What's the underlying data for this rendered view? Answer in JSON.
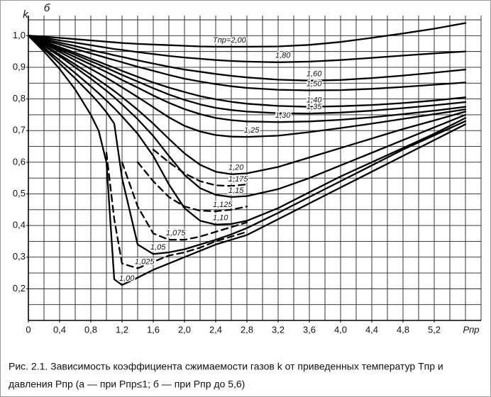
{
  "chart_data": {
    "type": "line",
    "y_label": "k",
    "panel_label": "б",
    "x_label": "Pпр",
    "caption": [
      "Рис. 2.1. Зависимость коэффициента сжимаемости газов k от приведенных температур Tпр и",
      "давления Pпр (а — при Pпр≤1; б — при Pпр до 5,6)"
    ],
    "xlim": [
      0,
      5.8
    ],
    "ylim": [
      0.1,
      1.05
    ],
    "xticks": [
      0,
      {
        "value": 0.4,
        "label": "0,4"
      },
      {
        "value": 0.8,
        "label": "0,8"
      },
      {
        "value": 1.2,
        "label": "1,2"
      },
      {
        "value": 1.6,
        "label": "1,6"
      },
      {
        "value": 2.0,
        "label": "2,0"
      },
      {
        "value": 2.4,
        "label": "2,4"
      },
      {
        "value": 2.8,
        "label": "2,8"
      },
      {
        "value": 3.2,
        "label": "3,2"
      },
      {
        "value": 3.6,
        "label": "3,6"
      },
      {
        "value": 4.0,
        "label": "4,0"
      },
      {
        "value": 4.4,
        "label": "4,4"
      },
      {
        "value": 4.8,
        "label": "4,8"
      },
      {
        "value": 5.2,
        "label": "5,2"
      }
    ],
    "x_label_at": 5.6,
    "yticks": [
      {
        "value": 0.2,
        "label": "0,2"
      },
      {
        "value": 0.3,
        "label": "0,3"
      },
      {
        "value": 0.4,
        "label": "0,4"
      },
      {
        "value": 0.5,
        "label": "0,5"
      },
      {
        "value": 0.6,
        "label": "0,6"
      },
      {
        "value": 0.7,
        "label": "0,7"
      },
      {
        "value": 0.8,
        "label": "0,8"
      },
      {
        "value": 0.9,
        "label": "0,9"
      },
      {
        "value": 1.0,
        "label": "1,0"
      }
    ],
    "xgrid": [
      0,
      0.2,
      0.4,
      0.6,
      0.8,
      1.0,
      1.2,
      1.4,
      1.6,
      1.8,
      2.0,
      2.2,
      2.4,
      2.6,
      2.8,
      3.0,
      3.2,
      3.4,
      3.6,
      3.8,
      4.0,
      4.2,
      4.4,
      4.6,
      4.8,
      5.0,
      5.2,
      5.4,
      5.6,
      5.8
    ],
    "ygrid": [
      0.1,
      0.15,
      0.2,
      0.25,
      0.3,
      0.35,
      0.4,
      0.45,
      0.5,
      0.55,
      0.6,
      0.65,
      0.7,
      0.75,
      0.8,
      0.85,
      0.9,
      0.95,
      1.0,
      1.05
    ],
    "grid": true,
    "x": [
      0,
      0.2,
      0.4,
      0.6,
      0.8,
      0.9,
      1.0,
      1.1,
      1.2,
      1.4,
      1.6,
      1.8,
      2.0,
      2.2,
      2.4,
      2.6,
      2.8,
      3.2,
      3.6,
      4.0,
      4.4,
      4.8,
      5.2,
      5.6
    ],
    "series": [
      {
        "name": "Tпр=2,00",
        "color": "#000000",
        "dashed": false,
        "values": [
          1,
          0.997,
          0.993,
          0.989,
          0.985,
          0.983,
          0.981,
          0.979,
          0.977,
          0.974,
          0.972,
          0.97,
          0.968,
          0.966,
          0.965,
          0.965,
          0.965,
          0.966,
          0.971,
          0.98,
          0.993,
          1.007,
          1.022,
          1.04
        ]
      },
      {
        "name": "1,80",
        "color": "#000000",
        "dashed": false,
        "values": [
          1,
          0.993,
          0.985,
          0.978,
          0.97,
          0.966,
          0.962,
          0.958,
          0.955,
          0.948,
          0.942,
          0.936,
          0.931,
          0.927,
          0.923,
          0.92,
          0.918,
          0.916,
          0.918,
          0.923,
          0.93,
          0.937,
          0.944,
          0.95
        ]
      },
      {
        "name": "1,60",
        "color": "#000000",
        "dashed": false,
        "values": [
          1,
          0.989,
          0.978,
          0.967,
          0.955,
          0.949,
          0.944,
          0.938,
          0.933,
          0.922,
          0.912,
          0.902,
          0.893,
          0.886,
          0.879,
          0.873,
          0.868,
          0.861,
          0.858,
          0.86,
          0.866,
          0.874,
          0.883,
          0.893
        ]
      },
      {
        "name": "1,50",
        "color": "#000000",
        "dashed": false,
        "values": [
          1,
          0.986,
          0.972,
          0.958,
          0.944,
          0.937,
          0.93,
          0.923,
          0.916,
          0.902,
          0.889,
          0.876,
          0.864,
          0.855,
          0.847,
          0.84,
          0.835,
          0.829,
          0.827,
          0.828,
          0.832,
          0.838,
          0.845,
          0.852
        ]
      },
      {
        "name": "1,40",
        "color": "#000000",
        "dashed": false,
        "values": [
          1,
          0.982,
          0.964,
          0.946,
          0.927,
          0.918,
          0.908,
          0.899,
          0.889,
          0.87,
          0.852,
          0.836,
          0.822,
          0.809,
          0.799,
          0.791,
          0.785,
          0.778,
          0.775,
          0.777,
          0.781,
          0.787,
          0.795,
          0.805
        ]
      },
      {
        "name": "1,35",
        "color": "#000000",
        "dashed": false,
        "values": [
          1,
          0.98,
          0.96,
          0.94,
          0.919,
          0.909,
          0.898,
          0.887,
          0.876,
          0.855,
          0.834,
          0.814,
          0.797,
          0.783,
          0.772,
          0.765,
          0.76,
          0.755,
          0.754,
          0.757,
          0.763,
          0.771,
          0.78,
          0.79
        ]
      },
      {
        "name": "1,30",
        "color": "#000000",
        "dashed": false,
        "values": [
          1,
          0.978,
          0.955,
          0.932,
          0.909,
          0.897,
          0.885,
          0.873,
          0.86,
          0.836,
          0.811,
          0.788,
          0.768,
          0.752,
          0.74,
          0.733,
          0.729,
          0.727,
          0.729,
          0.734,
          0.742,
          0.752,
          0.763,
          0.775
        ]
      },
      {
        "name": "1,25",
        "color": "#000000",
        "dashed": false,
        "values": [
          1,
          0.975,
          0.949,
          0.922,
          0.895,
          0.881,
          0.867,
          0.852,
          0.837,
          0.806,
          0.774,
          0.742,
          0.715,
          0.697,
          0.686,
          0.681,
          0.68,
          0.684,
          0.695,
          0.708,
          0.722,
          0.737,
          0.752,
          0.767
        ]
      },
      {
        "name": "1,20",
        "color": "#000000",
        "dashed": false,
        "values": [
          1,
          0.971,
          0.94,
          0.909,
          0.877,
          0.86,
          0.843,
          0.825,
          0.806,
          0.766,
          0.722,
          0.674,
          0.628,
          0.592,
          0.57,
          0.562,
          0.565,
          0.585,
          0.615,
          0.645,
          0.675,
          0.705,
          0.732,
          0.76
        ]
      },
      {
        "name": "1,175",
        "color": "#000000",
        "dashed": true,
        "values": [
          null,
          null,
          null,
          null,
          null,
          null,
          null,
          null,
          null,
          null,
          0.64,
          0.6,
          0.565,
          0.54,
          0.527,
          0.525,
          0.53,
          null,
          null,
          null,
          null,
          null,
          null,
          null
        ]
      },
      {
        "name": "1,15",
        "color": "#000000",
        "dashed": false,
        "values": [
          1,
          0.968,
          0.935,
          0.9,
          0.864,
          0.845,
          0.826,
          0.805,
          0.783,
          0.736,
          0.683,
          0.62,
          0.56,
          0.518,
          0.497,
          0.49,
          0.493,
          0.515,
          0.55,
          0.59,
          0.63,
          0.67,
          0.71,
          0.75
        ]
      },
      {
        "name": "1,125",
        "color": "#000000",
        "dashed": true,
        "values": [
          null,
          null,
          null,
          null,
          null,
          null,
          null,
          null,
          null,
          0.6,
          0.54,
          0.49,
          0.46,
          0.447,
          0.445,
          0.45,
          0.46,
          null,
          null,
          null,
          null,
          null,
          null,
          null
        ]
      },
      {
        "name": "1,10",
        "color": "#000000",
        "dashed": false,
        "values": [
          1,
          0.962,
          0.922,
          0.882,
          0.84,
          0.818,
          0.795,
          0.771,
          0.745,
          0.69,
          0.62,
          0.53,
          0.455,
          0.415,
          0.403,
          0.405,
          0.415,
          0.455,
          0.505,
          0.555,
          0.6,
          0.645,
          0.69,
          0.74
        ]
      },
      {
        "name": "1,075",
        "color": "#000000",
        "dashed": true,
        "values": [
          null,
          null,
          null,
          null,
          null,
          null,
          null,
          null,
          0.6,
          0.46,
          0.375,
          0.355,
          0.355,
          0.365,
          0.38,
          0.395,
          0.41,
          null,
          null,
          null,
          null,
          null,
          null,
          null
        ]
      },
      {
        "name": "1,05",
        "color": "#000000",
        "dashed": false,
        "values": [
          1,
          0.958,
          0.912,
          0.865,
          0.815,
          0.788,
          0.758,
          0.722,
          0.55,
          0.34,
          0.31,
          0.315,
          0.325,
          0.34,
          0.355,
          0.372,
          0.392,
          0.44,
          0.49,
          0.54,
          0.59,
          0.64,
          0.685,
          0.73
        ]
      },
      {
        "name": "1,025",
        "color": "#000000",
        "dashed": true,
        "values": [
          null,
          null,
          null,
          null,
          null,
          null,
          0.63,
          0.42,
          0.28,
          0.265,
          0.285,
          0.305,
          0.315,
          0.33,
          0.35,
          0.365,
          0.38,
          null,
          null,
          null,
          null,
          null,
          null,
          null
        ]
      },
      {
        "name": "1,00",
        "color": "#000000",
        "dashed": false,
        "values": [
          1,
          0.95,
          0.895,
          0.83,
          0.75,
          0.7,
          0.6,
          0.23,
          0.212,
          0.235,
          0.26,
          0.28,
          0.3,
          0.32,
          0.34,
          0.355,
          0.37,
          0.42,
          0.47,
          0.52,
          0.57,
          0.62,
          0.67,
          0.72
        ]
      }
    ]
  }
}
